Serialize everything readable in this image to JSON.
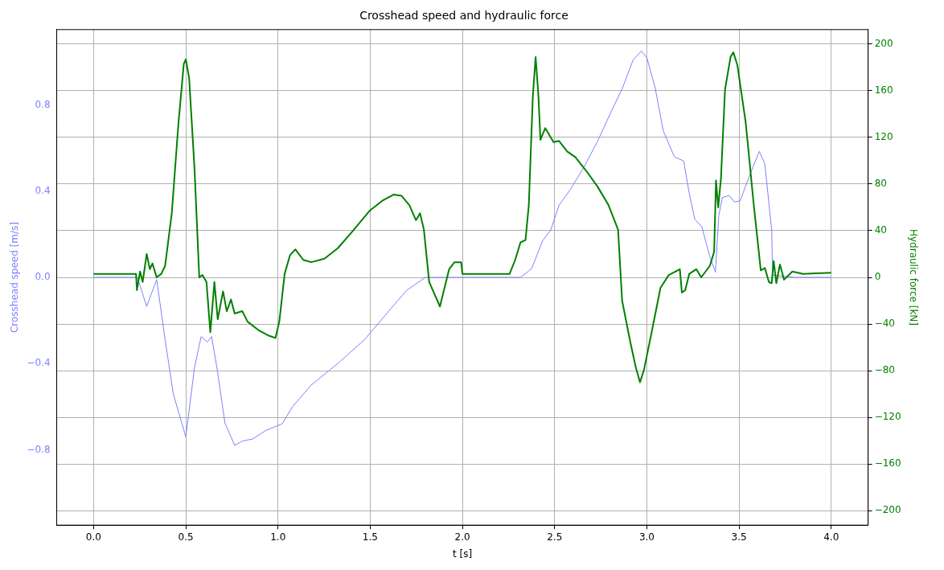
{
  "chart_data": {
    "type": "line",
    "title": "Crosshead speed and hydraulic force",
    "xlabel": "t [s]",
    "ylabel": "Crosshead speed [m/s]",
    "y2label": "Hydraulic force [kN]",
    "xlim": [
      -0.2,
      4.2
    ],
    "xticks": [
      {
        "value": 0,
        "label": "0.0"
      },
      0.5,
      {
        "value": 1,
        "label": "1.0"
      },
      1.5,
      {
        "value": 2,
        "label": "2.0"
      },
      2.5,
      {
        "value": 3,
        "label": "3.0"
      },
      3.5,
      {
        "value": 4,
        "label": "4.0"
      }
    ],
    "ylim": [
      -1.15,
      1.15
    ],
    "yticks": [
      {
        "value": -0.8,
        "label": "−0.8"
      },
      {
        "value": -0.4,
        "label": "−0.4"
      },
      {
        "value": 0,
        "label": "0.0"
      },
      0.4,
      0.8
    ],
    "y2lim": [
      -212.5,
      212.5
    ],
    "y2ticks": [
      {
        "value": -200,
        "label": "−200"
      },
      {
        "value": -160,
        "label": "−160"
      },
      {
        "value": -120,
        "label": "−120"
      },
      {
        "value": -80,
        "label": "−80"
      },
      {
        "value": -40,
        "label": "−40"
      },
      0,
      40,
      80,
      120,
      160,
      200
    ],
    "grid": true,
    "legend": false,
    "series": [
      {
        "color": "#7f7fff",
        "axis": "y",
        "x": [
          0,
          0.237,
          0.288,
          0.342,
          0.388,
          0.432,
          0.5,
          0.547,
          0.583,
          0.616,
          0.64,
          0.669,
          0.712,
          0.765,
          0.806,
          0.863,
          0.935,
          1.022,
          1.079,
          1.18,
          1.324,
          1.468,
          1.612,
          1.698,
          1.799,
          2.04,
          2.315,
          2.375,
          2.435,
          2.479,
          2.524,
          2.583,
          2.658,
          2.732,
          2.807,
          2.866,
          2.926,
          2.97,
          3.0,
          3.045,
          3.089,
          3.149,
          3.2,
          3.231,
          3.26,
          3.298,
          3.342,
          3.372,
          3.39,
          3.409,
          3.446,
          3.476,
          3.506,
          3.551,
          3.61,
          3.64,
          3.677,
          3.682,
          3.8,
          4.0
        ],
        "values": [
          0,
          0,
          -0.135,
          -0.01,
          -0.29,
          -0.54,
          -0.74,
          -0.42,
          -0.275,
          -0.3,
          -0.275,
          -0.42,
          -0.675,
          -0.78,
          -0.76,
          -0.75,
          -0.71,
          -0.68,
          -0.6,
          -0.5,
          -0.4,
          -0.29,
          -0.145,
          -0.06,
          0,
          0,
          0,
          0.04,
          0.17,
          0.22,
          0.335,
          0.405,
          0.51,
          0.63,
          0.77,
          0.875,
          1.01,
          1.05,
          1.02,
          0.88,
          0.68,
          0.56,
          0.54,
          0.385,
          0.27,
          0.235,
          0.095,
          0.024,
          0.285,
          0.37,
          0.38,
          0.35,
          0.355,
          0.46,
          0.585,
          0.525,
          0.22,
          0.01,
          0,
          0
        ]
      },
      {
        "color": "#008000",
        "axis": "y2",
        "x": [
          0,
          0.23,
          0.235,
          0.252,
          0.266,
          0.288,
          0.305,
          0.319,
          0.342,
          0.367,
          0.388,
          0.424,
          0.46,
          0.489,
          0.5,
          0.518,
          0.547,
          0.573,
          0.59,
          0.612,
          0.633,
          0.655,
          0.673,
          0.702,
          0.722,
          0.745,
          0.765,
          0.806,
          0.835,
          0.892,
          0.95,
          0.986,
          1.007,
          1.036,
          1.065,
          1.094,
          1.137,
          1.18,
          1.252,
          1.324,
          1.396,
          1.496,
          1.568,
          1.626,
          1.669,
          1.712,
          1.748,
          1.77,
          1.791,
          1.82,
          1.878,
          1.928,
          1.957,
          1.993,
          2.0,
          2.256,
          2.286,
          2.315,
          2.342,
          2.36,
          2.382,
          2.397,
          2.412,
          2.423,
          2.449,
          2.494,
          2.524,
          2.568,
          2.613,
          2.673,
          2.732,
          2.792,
          2.844,
          2.866,
          2.911,
          2.94,
          2.963,
          2.985,
          3.03,
          3.074,
          3.119,
          3.179,
          3.19,
          3.208,
          3.23,
          3.268,
          3.295,
          3.342,
          3.365,
          3.375,
          3.387,
          3.402,
          3.424,
          3.454,
          3.469,
          3.491,
          3.536,
          3.58,
          3.618,
          3.64,
          3.662,
          3.677,
          3.688,
          3.702,
          3.722,
          3.744,
          3.789,
          3.848,
          4.0
        ],
        "values": [
          3,
          3,
          -11,
          5,
          -4,
          20,
          7,
          12,
          0,
          3,
          10,
          55,
          132,
          183,
          187,
          171,
          94,
          0,
          2,
          -4,
          -47,
          -4,
          -36,
          -12,
          -29,
          -19,
          -31,
          -29,
          -38,
          -45,
          -50,
          -52,
          -38,
          3,
          19,
          24,
          15,
          13,
          16,
          25,
          38,
          57,
          66,
          71,
          70,
          62,
          49,
          55,
          41,
          -4,
          -25,
          7,
          13,
          13,
          3,
          3,
          15,
          30,
          32,
          62,
          156,
          189,
          156,
          118,
          128,
          116,
          117,
          108,
          103,
          91,
          78,
          62,
          41,
          -20,
          -56,
          -77,
          -90,
          -79,
          -44,
          -9,
          2,
          7,
          -13,
          -11,
          3,
          7,
          0,
          10,
          22,
          83,
          60,
          85,
          161,
          189,
          193,
          182,
          133,
          62,
          6,
          8,
          -4,
          -5,
          14,
          -5,
          11,
          -2,
          5,
          3,
          4
        ]
      }
    ]
  }
}
